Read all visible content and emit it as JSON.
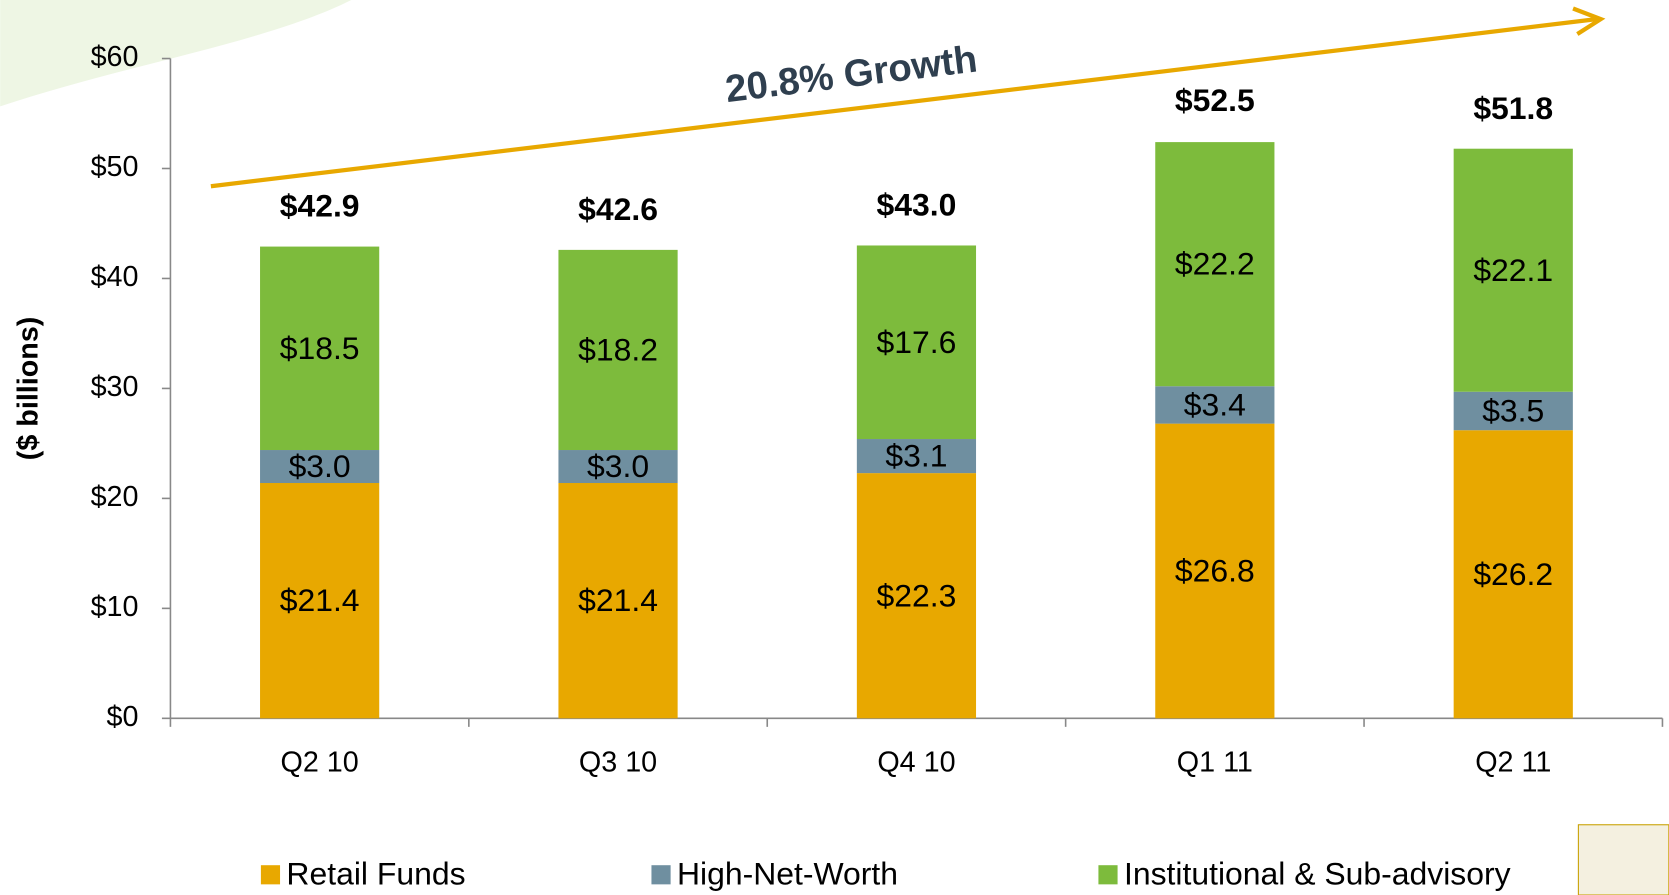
{
  "chart_data": {
    "type": "stacked_bar",
    "annotation": "20.8% Growth",
    "ylabel": "($ billions)",
    "categories": [
      "Q2 10",
      "Q3 10",
      "Q4 10",
      "Q1 11",
      "Q2 11"
    ],
    "series": [
      {
        "name": "Retail Funds",
        "color": "#e8a800",
        "values": [
          21.4,
          21.4,
          22.3,
          26.8,
          26.2
        ],
        "value_labels": [
          "$21.4",
          "$21.4",
          "$22.3",
          "$26.8",
          "$26.2"
        ]
      },
      {
        "name": "High-Net-Worth",
        "color": "#6f8fa0",
        "values": [
          3.0,
          3.0,
          3.1,
          3.4,
          3.5
        ],
        "value_labels": [
          "$3.0",
          "$3.0",
          "$3.1",
          "$3.4",
          "$3.5"
        ]
      },
      {
        "name": "Institutional & Sub-advisory",
        "color": "#7dbb3c",
        "values": [
          18.5,
          18.2,
          17.6,
          22.2,
          22.1
        ],
        "value_labels": [
          "$18.5",
          "$18.2",
          "$17.6",
          "$22.2",
          "$22.1"
        ]
      }
    ],
    "totals": [
      42.9,
      42.6,
      43.0,
      52.5,
      51.8
    ],
    "total_labels": [
      "$42.9",
      "$42.6",
      "$43.0",
      "$52.5",
      "$51.8"
    ],
    "ylim": [
      0,
      60
    ],
    "yticks": [
      {
        "value": 0,
        "label": "$0"
      },
      {
        "value": 10,
        "label": "$10"
      },
      {
        "value": 20,
        "label": "$20"
      },
      {
        "value": 30,
        "label": "$30"
      },
      {
        "value": 40,
        "label": "$40"
      },
      {
        "value": 50,
        "label": "$50"
      },
      {
        "value": 60,
        "label": "$60"
      }
    ],
    "legend": "bottom"
  }
}
